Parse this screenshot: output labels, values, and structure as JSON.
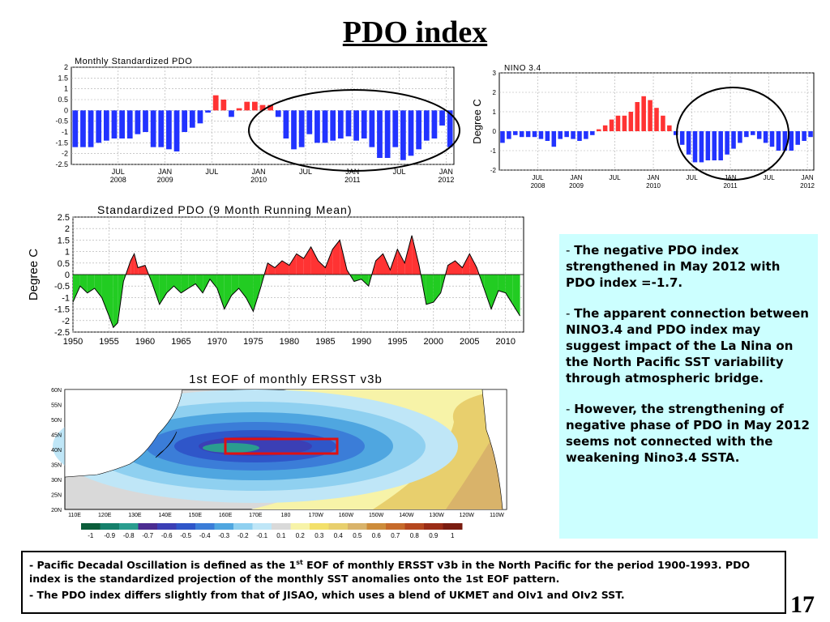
{
  "slide": {
    "title": "PDO index",
    "page_number": "17"
  },
  "bullets": [
    "The negative PDO index strengthened in May 2012 with PDO index =-1.7.",
    "The apparent connection between NINO3.4 and PDO index may suggest impact of the La Nina on the North Pacific SST variability through atmospheric bridge.",
    "However, the strengthening of negative phase of PDO in May 2012 seems not connected with the weakening Nino3.4 SSTA."
  ],
  "notes": {
    "note1_a": "Pacific Decadal Oscillation is defined as the 1",
    "note1_sup": "st",
    "note1_b": " EOF of monthly ERSST v3b in the North Pacific for the period 1900-1993. PDO index is the standardized projection of the monthly SST anomalies onto  the 1st EOF pattern.",
    "note2": "The PDO index differs slightly from that of JISAO, which uses a blend of UKMET and OIv1 and OIv2 SST."
  },
  "colors": {
    "positive_bar": "#ff3333",
    "negative_bar": "#2233ff",
    "positive_fill": "#ff3333",
    "negative_fill": "#22cc22",
    "note_box_bg": "#ccffff"
  },
  "chart_data": [
    {
      "type": "bar",
      "title": "Monthly Standardized PDO",
      "ylabel": "",
      "ylim": [
        -2.5,
        2
      ],
      "yticks": [
        "2",
        "1.5",
        "1",
        "0.5",
        "0",
        "-0.5",
        "-1",
        "-1.5",
        "-2",
        "-2.5"
      ],
      "xtick_labels": [
        {
          "month": "JUL",
          "year": "2008"
        },
        {
          "month": "JAN",
          "year": "2009"
        },
        {
          "month": "JUL",
          "year": ""
        },
        {
          "month": "JAN",
          "year": "2010"
        },
        {
          "month": "JUL",
          "year": ""
        },
        {
          "month": "JAN",
          "year": "2011"
        },
        {
          "month": "JUL",
          "year": ""
        },
        {
          "month": "JAN",
          "year": "2012"
        }
      ],
      "start": "2008-01",
      "values": [
        -1.7,
        -1.7,
        -1.7,
        -1.5,
        -1.4,
        -1.3,
        -1.3,
        -1.3,
        -1.1,
        -1.0,
        -1.7,
        -1.7,
        -1.8,
        -1.9,
        -1.0,
        -0.8,
        -0.6,
        -0.1,
        0.7,
        0.5,
        -0.3,
        0.1,
        0.4,
        0.4,
        0.25,
        0.25,
        -0.3,
        -1.3,
        -1.8,
        -1.7,
        -1.1,
        -1.5,
        -1.5,
        -1.4,
        -1.3,
        -1.2,
        -1.4,
        -1.3,
        -1.7,
        -2.2,
        -2.2,
        -1.7,
        -2.3,
        -2.1,
        -1.8,
        -1.4,
        -1.3,
        -0.7,
        -1.7
      ]
    },
    {
      "type": "bar",
      "title": "NINO 3.4",
      "ylabel": "Degree  C",
      "ylim": [
        -2,
        3
      ],
      "yticks": [
        "3",
        "2",
        "1",
        "0",
        "-1",
        "-2"
      ],
      "xtick_labels": [
        {
          "month": "JUL",
          "year": "2008"
        },
        {
          "month": "JAN",
          "year": "2009"
        },
        {
          "month": "JUL",
          "year": ""
        },
        {
          "month": "JAN",
          "year": "2010"
        },
        {
          "month": "JUL",
          "year": ""
        },
        {
          "month": "JAN",
          "year": "2011"
        },
        {
          "month": "JUL",
          "year": ""
        },
        {
          "month": "JAN",
          "year": "2012"
        }
      ],
      "start": "2008-01",
      "values": [
        -0.6,
        -0.4,
        -0.2,
        -0.3,
        -0.3,
        -0.3,
        -0.4,
        -0.5,
        -0.8,
        -0.4,
        -0.3,
        -0.4,
        -0.5,
        -0.4,
        -0.2,
        0.1,
        0.3,
        0.6,
        0.8,
        0.8,
        1.0,
        1.5,
        1.8,
        1.6,
        1.2,
        0.8,
        0.3,
        -0.2,
        -0.7,
        -1.2,
        -1.6,
        -1.6,
        -1.5,
        -1.5,
        -1.5,
        -1.2,
        -0.9,
        -0.6,
        -0.3,
        -0.2,
        -0.4,
        -0.6,
        -0.8,
        -1.0,
        -1.0,
        -1.0,
        -0.7,
        -0.5,
        -0.3
      ]
    },
    {
      "type": "area",
      "title": "Standardized PDO (9 Month Running Mean)",
      "ylabel": "Degree  C",
      "ylim": [
        -2.5,
        2.5
      ],
      "yticks": [
        "2.5",
        "2",
        "1.5",
        "1",
        "0.5",
        "0",
        "-0.5",
        "-1",
        "-1.5",
        "-2",
        "-2.5"
      ],
      "xticks": [
        "1950",
        "1955",
        "1960",
        "1965",
        "1970",
        "1975",
        "1980",
        "1985",
        "1990",
        "1995",
        "2000",
        "2005",
        "2010"
      ],
      "x": [
        1950.0,
        1951.0,
        1952.0,
        1953.0,
        1954.0,
        1955.0,
        1955.6,
        1956.2,
        1957.0,
        1958.0,
        1958.5,
        1959.0,
        1960.0,
        1961.0,
        1962.0,
        1963.0,
        1964.0,
        1965.0,
        1966.0,
        1967.0,
        1968.0,
        1969.0,
        1970.0,
        1971.0,
        1972.0,
        1973.0,
        1974.0,
        1975.0,
        1976.0,
        1977.0,
        1978.0,
        1979.0,
        1980.0,
        1981.0,
        1982.0,
        1983.0,
        1984.0,
        1985.0,
        1986.0,
        1987.0,
        1988.0,
        1989.0,
        1990.0,
        1991.0,
        1992.0,
        1993.0,
        1994.0,
        1995.0,
        1996.0,
        1997.0,
        1998.0,
        1999.0,
        2000.0,
        2001.0,
        2002.0,
        2003.0,
        2004.0,
        2005.0,
        2006.0,
        2007.0,
        2008.0,
        2009.0,
        2010.0,
        2011.0,
        2012.0
      ],
      "values": [
        -1.2,
        -0.5,
        -0.8,
        -0.6,
        -1.0,
        -1.8,
        -2.3,
        -2.1,
        -0.3,
        0.6,
        0.9,
        0.3,
        0.4,
        -0.4,
        -1.3,
        -0.8,
        -0.5,
        -0.8,
        -0.6,
        -0.4,
        -0.8,
        -0.2,
        -0.6,
        -1.5,
        -0.9,
        -0.6,
        -1.0,
        -1.6,
        -0.6,
        0.5,
        0.3,
        0.6,
        0.4,
        0.9,
        0.7,
        1.2,
        0.6,
        0.3,
        1.1,
        1.5,
        0.2,
        -0.3,
        -0.2,
        -0.5,
        0.6,
        0.9,
        0.2,
        1.1,
        0.5,
        1.7,
        0.4,
        -1.3,
        -1.2,
        -0.8,
        0.4,
        0.6,
        0.3,
        0.9,
        0.3,
        -0.6,
        -1.5,
        -0.7,
        -0.8,
        -1.3,
        -1.8
      ]
    },
    {
      "type": "heatmap",
      "title": "1st EOF of monthly ERSST v3b",
      "lat_labels": [
        "60N",
        "55N",
        "50N",
        "45N",
        "40N",
        "35N",
        "30N",
        "25N",
        "20N"
      ],
      "lon_labels": [
        "110E",
        "120E",
        "130E",
        "140E",
        "150E",
        "160E",
        "170E",
        "180",
        "170W",
        "160W",
        "150W",
        "140W",
        "130W",
        "120W",
        "110W"
      ],
      "colorbar_labels": [
        "-1",
        "-0.9",
        "-0.8",
        "-0.7",
        "-0.6",
        "-0.5",
        "-0.4",
        "-0.3",
        "-0.2",
        "-0.1",
        "0.1",
        "0.2",
        "0.3",
        "0.4",
        "0.5",
        "0.6",
        "0.7",
        "0.8",
        "0.9",
        "1"
      ],
      "colorbar_colors": [
        "#0b5d3a",
        "#15806b",
        "#2a9d8f",
        "#4b2c91",
        "#3b3fb5",
        "#2f56c9",
        "#3b7dd8",
        "#4fa6e0",
        "#8fd0f0",
        "#bfe6f7",
        "#d9d9d9",
        "#f7f3a8",
        "#f3e06a",
        "#e8cf6d",
        "#d9b36a",
        "#cd8c3a",
        "#c66a2a",
        "#b5471e",
        "#9a2c16",
        "#7a1c10"
      ]
    }
  ]
}
